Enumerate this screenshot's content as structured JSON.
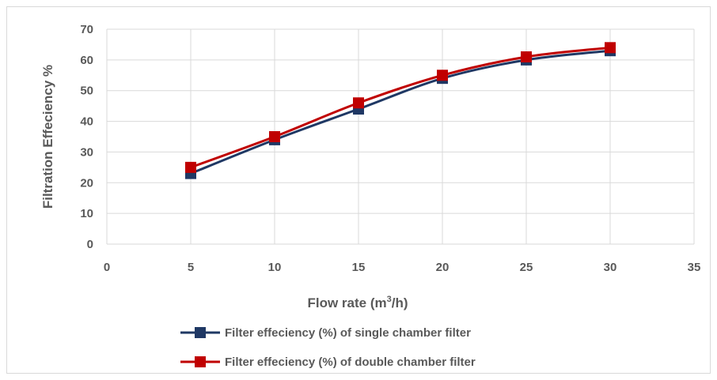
{
  "chart_data": {
    "type": "line",
    "title": "",
    "xlabel": "Flow rate (m3/h)",
    "xlabel_main": "Flow rate (m",
    "xlabel_sup": "3",
    "xlabel_tail": "/h)",
    "ylabel": "Filtration Effeciency %",
    "xlim": [
      0,
      35
    ],
    "ylim": [
      0,
      70
    ],
    "xticks": [
      0,
      5,
      10,
      15,
      20,
      25,
      30,
      35
    ],
    "yticks": [
      0,
      10,
      20,
      30,
      40,
      50,
      60,
      70
    ],
    "grid": true,
    "legend_position": "bottom",
    "series": [
      {
        "name": "Filter effeciency (%) of single chamber filter",
        "color": "#1f3864",
        "x": [
          5,
          10,
          15,
          20,
          25,
          30
        ],
        "y": [
          23,
          34,
          44,
          54,
          60,
          63
        ]
      },
      {
        "name": "Filter effeciency (%) of double chamber filter",
        "color": "#c00000",
        "x": [
          5,
          10,
          15,
          20,
          25,
          30
        ],
        "y": [
          25,
          35,
          46,
          55,
          61,
          64
        ]
      }
    ]
  }
}
